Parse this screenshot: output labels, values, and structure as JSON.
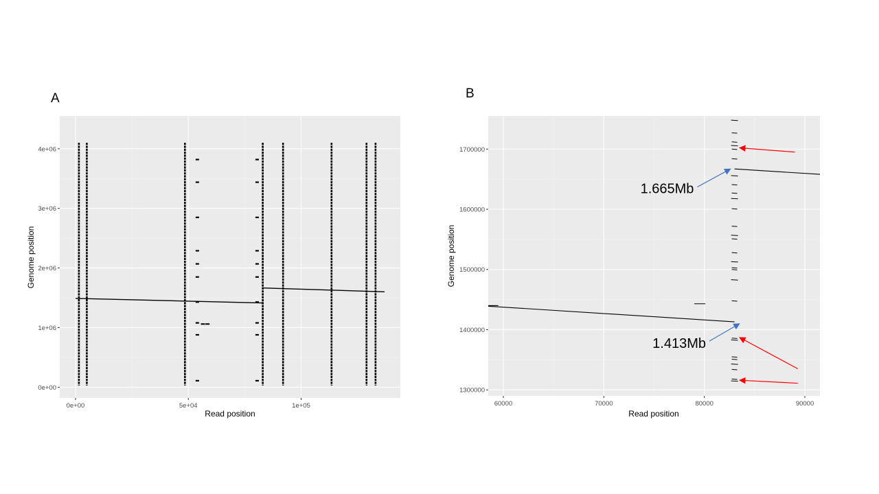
{
  "chart_data": [
    {
      "panel_label": "A",
      "type": "scatter",
      "xlabel": "Read position",
      "ylabel": "Genome position",
      "xlim": [
        -7000,
        144000
      ],
      "ylim": [
        -180000,
        4550000
      ],
      "grid": true,
      "x_ticks": [
        {
          "value": 0,
          "label": "0e+00"
        },
        {
          "value": 50000,
          "label": "5e+04"
        },
        {
          "value": 100000,
          "label": "1e+05"
        }
      ],
      "y_ticks": [
        {
          "value": 0,
          "label": "0e+00"
        },
        {
          "value": 1000000,
          "label": "1e+06"
        },
        {
          "value": 2000000,
          "label": "2e+06"
        },
        {
          "value": 3000000,
          "label": "3e+06"
        },
        {
          "value": 4000000,
          "label": "4e+06"
        }
      ],
      "segments": [
        {
          "x": [
            0,
            83000
          ],
          "y": [
            1490000,
            1413000
          ]
        },
        {
          "x": [
            83000,
            137000
          ],
          "y": [
            1665000,
            1600000
          ]
        }
      ],
      "column_x": [
        1500,
        5000,
        48500,
        83000,
        92000,
        113500,
        129000,
        133000
      ],
      "column_y_range": [
        30000,
        4100000
      ],
      "sparse_x": [
        54000,
        80500
      ],
      "sparse_y": [
        3820000,
        3440000,
        2850000,
        2290000,
        2070000,
        1850000,
        1430000,
        1080000,
        880000,
        110000
      ],
      "cluster_points": [
        {
          "x": 56500,
          "y": 1060000
        },
        {
          "x": 58500,
          "y": 1060000
        }
      ]
    },
    {
      "panel_label": "B",
      "type": "scatter",
      "xlabel": "Read position",
      "ylabel": "Genome position",
      "xlim": [
        58500,
        91500
      ],
      "ylim": [
        1290000,
        1755000
      ],
      "grid": true,
      "x_ticks": [
        {
          "value": 60000,
          "label": "60000"
        },
        {
          "value": 70000,
          "label": "70000"
        },
        {
          "value": 80000,
          "label": "80000"
        },
        {
          "value": 90000,
          "label": "90000"
        }
      ],
      "y_ticks": [
        {
          "value": 1300000,
          "label": "1300000"
        },
        {
          "value": 1400000,
          "label": "1400000"
        },
        {
          "value": 1500000,
          "label": "1500000"
        },
        {
          "value": 1600000,
          "label": "1600000"
        },
        {
          "value": 1700000,
          "label": "1700000"
        }
      ],
      "segments": [
        {
          "x": [
            58500,
            83000
          ],
          "y": [
            1439000,
            1413000
          ]
        },
        {
          "x": [
            83000,
            91500
          ],
          "y": [
            1667000,
            1658000
          ]
        },
        {
          "x": [
            58500,
            59500
          ],
          "y": [
            1440000,
            1440000
          ]
        },
        {
          "x": [
            79000,
            80100
          ],
          "y": [
            1443000,
            1443000
          ]
        }
      ],
      "dash_x": 83000,
      "dash_y": [
        1748000,
        1727000,
        1712000,
        1706000,
        1700000,
        1684000,
        1656000,
        1641000,
        1627000,
        1618000,
        1601000,
        1572000,
        1557000,
        1551000,
        1528000,
        1513000,
        1503000,
        1500000,
        1483000,
        1448000,
        1386000,
        1383000,
        1355000,
        1351000,
        1343000,
        1334000,
        1318000,
        1315000
      ],
      "annotations": [
        {
          "text": "1.665Mb",
          "label_x": 76300,
          "label_y": 1627000,
          "arrow_from": [
            79300,
            1637000
          ],
          "arrow_to": [
            82600,
            1667000
          ],
          "color": "#4472c4"
        },
        {
          "text": "1.413Mb",
          "label_x": 77500,
          "label_y": 1370000,
          "arrow_from": [
            80500,
            1381000
          ],
          "arrow_to": [
            83500,
            1410000
          ],
          "color": "#4472c4"
        }
      ],
      "arrows": [
        {
          "from": [
            89000,
            1695000
          ],
          "to": [
            83500,
            1702000
          ],
          "color": "#ff0000"
        },
        {
          "from": [
            89300,
            1335000
          ],
          "to": [
            83500,
            1387000
          ],
          "color": "#ff0000"
        },
        {
          "from": [
            89300,
            1311000
          ],
          "to": [
            83500,
            1316000
          ],
          "color": "#ff0000"
        }
      ]
    }
  ]
}
